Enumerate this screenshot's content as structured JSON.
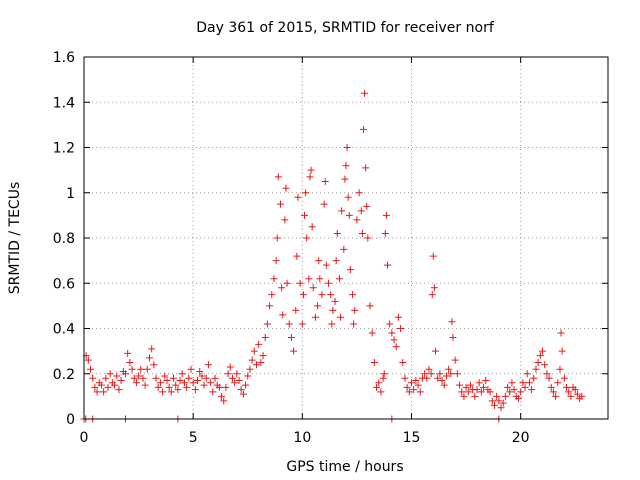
{
  "chart_data": {
    "type": "scatter",
    "title": "Day 361 of 2015, SRMTID for receiver norf",
    "xlabel": "GPS time / hours",
    "ylabel": "SRMTID / TECUs",
    "xlim": [
      0,
      24
    ],
    "ylim": [
      0,
      1.6
    ],
    "xticks": [
      0,
      5,
      10,
      15,
      20
    ],
    "yticks": [
      0,
      0.2,
      0.4,
      0.6,
      0.8,
      1,
      1.2,
      1.4,
      1.6
    ],
    "grid": true,
    "marker": "+",
    "color": "#e41a1c",
    "series": [
      {
        "name": "SRMTID norf",
        "points": [
          [
            0.0,
            0.0
          ],
          [
            0.08,
            0.0
          ],
          [
            0.4,
            0.0
          ],
          [
            1.9,
            0.0
          ],
          [
            4.3,
            0.0
          ],
          [
            14.1,
            0.0
          ],
          [
            19.0,
            0.0
          ],
          [
            0.1,
            0.28
          ],
          [
            0.2,
            0.26
          ],
          [
            0.3,
            0.22
          ],
          [
            0.4,
            0.18
          ],
          [
            0.5,
            0.14
          ],
          [
            0.6,
            0.12
          ],
          [
            0.7,
            0.16
          ],
          [
            0.8,
            0.15
          ],
          [
            0.9,
            0.12
          ],
          [
            1.0,
            0.18
          ],
          [
            1.1,
            0.14
          ],
          [
            1.2,
            0.2
          ],
          [
            1.3,
            0.16
          ],
          [
            1.4,
            0.15
          ],
          [
            1.5,
            0.19
          ],
          [
            1.6,
            0.13
          ],
          [
            1.7,
            0.17
          ],
          [
            1.8,
            0.21
          ],
          [
            1.9,
            0.2
          ],
          [
            2.0,
            0.29
          ],
          [
            2.1,
            0.25
          ],
          [
            2.2,
            0.22
          ],
          [
            2.3,
            0.18
          ],
          [
            2.4,
            0.16
          ],
          [
            2.5,
            0.19
          ],
          [
            2.6,
            0.22
          ],
          [
            2.7,
            0.18
          ],
          [
            2.8,
            0.15
          ],
          [
            2.9,
            0.22
          ],
          [
            3.0,
            0.27
          ],
          [
            3.1,
            0.31
          ],
          [
            3.2,
            0.24
          ],
          [
            3.3,
            0.18
          ],
          [
            3.4,
            0.14
          ],
          [
            3.5,
            0.16
          ],
          [
            3.6,
            0.12
          ],
          [
            3.7,
            0.19
          ],
          [
            3.8,
            0.17
          ],
          [
            3.9,
            0.14
          ],
          [
            4.0,
            0.12
          ],
          [
            4.1,
            0.18
          ],
          [
            4.2,
            0.15
          ],
          [
            4.3,
            0.13
          ],
          [
            4.4,
            0.17
          ],
          [
            4.5,
            0.2
          ],
          [
            4.6,
            0.16
          ],
          [
            4.7,
            0.14
          ],
          [
            4.8,
            0.18
          ],
          [
            4.9,
            0.22
          ],
          [
            5.0,
            0.16
          ],
          [
            5.1,
            0.13
          ],
          [
            5.2,
            0.17
          ],
          [
            5.3,
            0.21
          ],
          [
            5.4,
            0.19
          ],
          [
            5.5,
            0.15
          ],
          [
            5.6,
            0.18
          ],
          [
            5.7,
            0.24
          ],
          [
            5.8,
            0.16
          ],
          [
            5.9,
            0.12
          ],
          [
            6.0,
            0.18
          ],
          [
            6.1,
            0.15
          ],
          [
            6.2,
            0.14
          ],
          [
            6.3,
            0.1
          ],
          [
            6.4,
            0.08
          ],
          [
            6.5,
            0.14
          ],
          [
            6.6,
            0.2
          ],
          [
            6.7,
            0.23
          ],
          [
            6.8,
            0.18
          ],
          [
            6.9,
            0.16
          ],
          [
            7.0,
            0.2
          ],
          [
            7.1,
            0.17
          ],
          [
            7.2,
            0.13
          ],
          [
            7.3,
            0.11
          ],
          [
            7.4,
            0.15
          ],
          [
            7.5,
            0.19
          ],
          [
            7.6,
            0.22
          ],
          [
            7.7,
            0.26
          ],
          [
            7.8,
            0.3
          ],
          [
            7.9,
            0.24
          ],
          [
            8.0,
            0.33
          ],
          [
            8.1,
            0.25
          ],
          [
            8.2,
            0.28
          ],
          [
            8.3,
            0.36
          ],
          [
            8.4,
            0.42
          ],
          [
            8.5,
            0.5
          ],
          [
            8.6,
            0.55
          ],
          [
            8.7,
            0.62
          ],
          [
            8.8,
            0.7
          ],
          [
            8.85,
            0.8
          ],
          [
            8.9,
            1.07
          ],
          [
            9.0,
            0.95
          ],
          [
            9.05,
            0.58
          ],
          [
            9.1,
            0.46
          ],
          [
            9.2,
            0.88
          ],
          [
            9.25,
            1.02
          ],
          [
            9.3,
            0.6
          ],
          [
            9.4,
            0.42
          ],
          [
            9.5,
            0.36
          ],
          [
            9.6,
            0.3
          ],
          [
            9.7,
            0.48
          ],
          [
            9.75,
            0.72
          ],
          [
            9.8,
            0.98
          ],
          [
            9.9,
            0.6
          ],
          [
            10.0,
            0.42
          ],
          [
            10.05,
            0.55
          ],
          [
            10.1,
            0.9
          ],
          [
            10.15,
            1.0
          ],
          [
            10.2,
            0.8
          ],
          [
            10.3,
            0.62
          ],
          [
            10.35,
            1.07
          ],
          [
            10.4,
            1.1
          ],
          [
            10.45,
            0.85
          ],
          [
            10.5,
            0.58
          ],
          [
            10.6,
            0.45
          ],
          [
            10.7,
            0.5
          ],
          [
            10.75,
            0.7
          ],
          [
            10.8,
            0.62
          ],
          [
            10.9,
            0.55
          ],
          [
            11.0,
            0.95
          ],
          [
            11.05,
            1.05
          ],
          [
            11.1,
            0.68
          ],
          [
            11.2,
            0.6
          ],
          [
            11.3,
            0.55
          ],
          [
            11.35,
            0.42
          ],
          [
            11.4,
            0.48
          ],
          [
            11.5,
            0.52
          ],
          [
            11.55,
            0.7
          ],
          [
            11.6,
            0.82
          ],
          [
            11.7,
            0.62
          ],
          [
            11.75,
            0.45
          ],
          [
            11.8,
            0.92
          ],
          [
            11.9,
            0.75
          ],
          [
            11.95,
            1.06
          ],
          [
            12.0,
            1.12
          ],
          [
            12.05,
            1.2
          ],
          [
            12.1,
            0.98
          ],
          [
            12.15,
            0.9
          ],
          [
            12.2,
            0.66
          ],
          [
            12.3,
            0.55
          ],
          [
            12.35,
            0.42
          ],
          [
            12.4,
            0.48
          ],
          [
            12.5,
            0.88
          ],
          [
            12.6,
            1.0
          ],
          [
            12.7,
            0.92
          ],
          [
            12.75,
            0.82
          ],
          [
            12.8,
            1.28
          ],
          [
            12.85,
            1.44
          ],
          [
            12.9,
            1.11
          ],
          [
            12.95,
            0.94
          ],
          [
            13.0,
            0.8
          ],
          [
            13.1,
            0.5
          ],
          [
            13.2,
            0.38
          ],
          [
            13.3,
            0.25
          ],
          [
            13.4,
            0.14
          ],
          [
            13.5,
            0.16
          ],
          [
            13.6,
            0.12
          ],
          [
            13.7,
            0.18
          ],
          [
            13.75,
            0.2
          ],
          [
            13.8,
            0.82
          ],
          [
            13.85,
            0.9
          ],
          [
            13.9,
            0.68
          ],
          [
            14.0,
            0.42
          ],
          [
            14.1,
            0.38
          ],
          [
            14.2,
            0.35
          ],
          [
            14.3,
            0.32
          ],
          [
            14.4,
            0.45
          ],
          [
            14.5,
            0.4
          ],
          [
            14.6,
            0.25
          ],
          [
            14.7,
            0.18
          ],
          [
            14.8,
            0.14
          ],
          [
            14.9,
            0.12
          ],
          [
            15.0,
            0.16
          ],
          [
            15.1,
            0.13
          ],
          [
            15.2,
            0.17
          ],
          [
            15.3,
            0.15
          ],
          [
            15.4,
            0.12
          ],
          [
            15.5,
            0.18
          ],
          [
            15.6,
            0.2
          ],
          [
            15.7,
            0.18
          ],
          [
            15.8,
            0.22
          ],
          [
            15.9,
            0.2
          ],
          [
            15.95,
            0.55
          ],
          [
            16.0,
            0.72
          ],
          [
            16.05,
            0.58
          ],
          [
            16.1,
            0.3
          ],
          [
            16.2,
            0.18
          ],
          [
            16.3,
            0.2
          ],
          [
            16.4,
            0.17
          ],
          [
            16.5,
            0.15
          ],
          [
            16.6,
            0.19
          ],
          [
            16.7,
            0.22
          ],
          [
            16.8,
            0.2
          ],
          [
            16.85,
            0.43
          ],
          [
            16.9,
            0.36
          ],
          [
            17.0,
            0.26
          ],
          [
            17.1,
            0.2
          ],
          [
            17.2,
            0.15
          ],
          [
            17.3,
            0.12
          ],
          [
            17.4,
            0.1
          ],
          [
            17.5,
            0.14
          ],
          [
            17.6,
            0.12
          ],
          [
            17.7,
            0.15
          ],
          [
            17.8,
            0.13
          ],
          [
            17.9,
            0.1
          ],
          [
            18.0,
            0.13
          ],
          [
            18.1,
            0.16
          ],
          [
            18.2,
            0.12
          ],
          [
            18.3,
            0.14
          ],
          [
            18.4,
            0.17
          ],
          [
            18.5,
            0.13
          ],
          [
            18.6,
            0.12
          ],
          [
            18.7,
            0.08
          ],
          [
            18.8,
            0.06
          ],
          [
            18.9,
            0.1
          ],
          [
            19.0,
            0.08
          ],
          [
            19.1,
            0.05
          ],
          [
            19.2,
            0.07
          ],
          [
            19.3,
            0.1
          ],
          [
            19.4,
            0.14
          ],
          [
            19.5,
            0.12
          ],
          [
            19.6,
            0.16
          ],
          [
            19.7,
            0.13
          ],
          [
            19.8,
            0.1
          ],
          [
            19.9,
            0.09
          ],
          [
            20.0,
            0.12
          ],
          [
            20.1,
            0.16
          ],
          [
            20.2,
            0.14
          ],
          [
            20.3,
            0.2
          ],
          [
            20.4,
            0.16
          ],
          [
            20.5,
            0.13
          ],
          [
            20.6,
            0.18
          ],
          [
            20.7,
            0.22
          ],
          [
            20.8,
            0.25
          ],
          [
            20.9,
            0.28
          ],
          [
            21.0,
            0.3
          ],
          [
            21.1,
            0.24
          ],
          [
            21.2,
            0.2
          ],
          [
            21.3,
            0.18
          ],
          [
            21.4,
            0.14
          ],
          [
            21.5,
            0.12
          ],
          [
            21.6,
            0.1
          ],
          [
            21.7,
            0.16
          ],
          [
            21.8,
            0.22
          ],
          [
            21.85,
            0.38
          ],
          [
            21.9,
            0.3
          ],
          [
            22.0,
            0.18
          ],
          [
            22.1,
            0.14
          ],
          [
            22.2,
            0.12
          ],
          [
            22.3,
            0.1
          ],
          [
            22.4,
            0.14
          ],
          [
            22.5,
            0.13
          ],
          [
            22.6,
            0.11
          ],
          [
            22.7,
            0.09
          ],
          [
            22.8,
            0.1
          ]
        ]
      }
    ]
  }
}
